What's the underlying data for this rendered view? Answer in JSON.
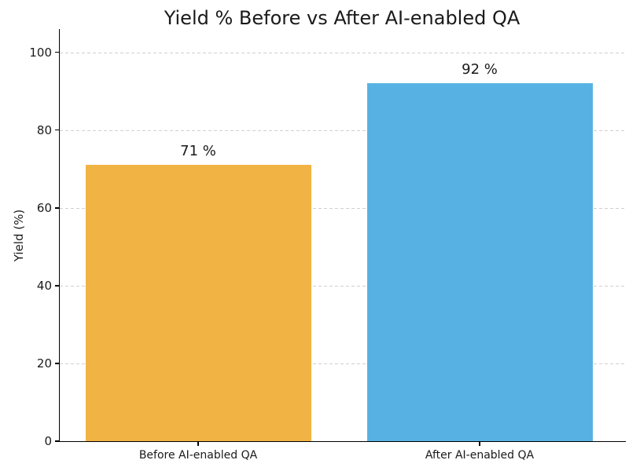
{
  "chart_data": {
    "type": "bar",
    "title": "Yield % Before vs After AI-enabled QA",
    "categories": [
      "Before AI-enabled QA",
      "After AI-enabled QA"
    ],
    "values": [
      71,
      92
    ],
    "bar_labels": [
      "71 %",
      "92 %"
    ],
    "bar_colors": [
      "#F1B344",
      "#57B2E3"
    ],
    "xlabel": "",
    "ylabel": "Yield (%)",
    "yticks": [
      0,
      20,
      40,
      60,
      80,
      100
    ],
    "ylim": [
      0,
      106
    ],
    "grid": "horizontal-dashed",
    "grid_below_bars": true,
    "legend": "none"
  },
  "colors": {
    "background": "#FFFFFF",
    "grid": "#CFCFCF",
    "axis": "#000000",
    "text": "#1A1A1A"
  }
}
